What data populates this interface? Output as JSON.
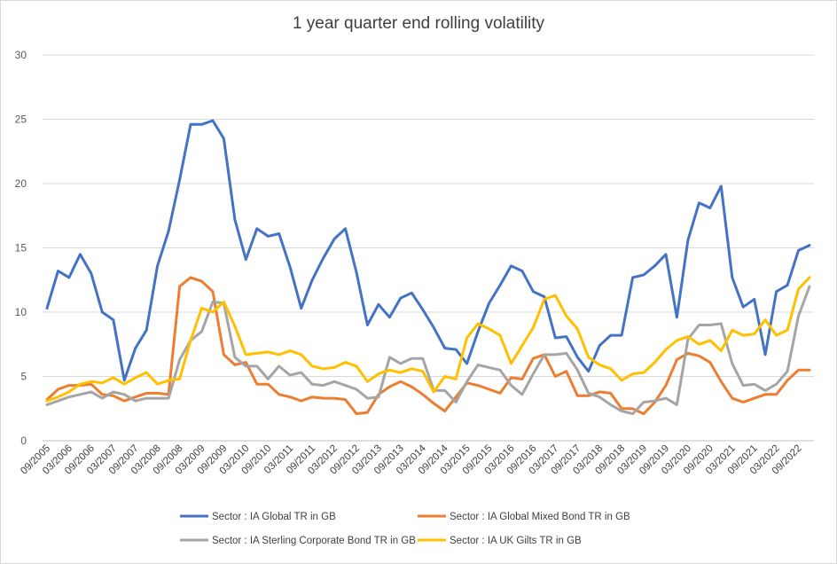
{
  "chart_data": {
    "type": "line",
    "title": "1 year quarter end rolling volatility",
    "xlabel": "",
    "ylabel": "",
    "ylim": [
      0,
      30
    ],
    "yticks": [
      0,
      5,
      10,
      15,
      20,
      25,
      30
    ],
    "grid": true,
    "legend_position": "bottom",
    "x": [
      "09/2005",
      "12/2005",
      "03/2006",
      "06/2006",
      "09/2006",
      "12/2006",
      "03/2007",
      "06/2007",
      "09/2007",
      "12/2007",
      "03/2008",
      "06/2008",
      "09/2008",
      "12/2008",
      "03/2009",
      "06/2009",
      "09/2009",
      "12/2009",
      "03/2010",
      "06/2010",
      "09/2010",
      "12/2010",
      "03/2011",
      "06/2011",
      "09/2011",
      "12/2011",
      "03/2012",
      "06/2012",
      "09/2012",
      "12/2012",
      "03/2013",
      "06/2013",
      "09/2013",
      "12/2013",
      "03/2014",
      "06/2014",
      "09/2014",
      "12/2014",
      "03/2015",
      "06/2015",
      "09/2015",
      "12/2015",
      "03/2016",
      "06/2016",
      "09/2016",
      "12/2016",
      "03/2017",
      "06/2017",
      "09/2017",
      "12/2017",
      "03/2018",
      "06/2018",
      "09/2018",
      "12/2018",
      "03/2019",
      "06/2019",
      "09/2019",
      "12/2019",
      "03/2020",
      "06/2020",
      "09/2020",
      "12/2020",
      "03/2021",
      "06/2021",
      "09/2021",
      "12/2021",
      "03/2022",
      "06/2022",
      "09/2022",
      "12/2022"
    ],
    "xtick_labels": [
      "09/2005",
      "03/2006",
      "09/2006",
      "03/2007",
      "09/2007",
      "03/2008",
      "09/2008",
      "03/2009",
      "09/2009",
      "03/2010",
      "09/2010",
      "03/2011",
      "09/2011",
      "03/2012",
      "09/2012",
      "03/2013",
      "09/2013",
      "03/2014",
      "09/2014",
      "03/2015",
      "09/2015",
      "03/2016",
      "09/2016",
      "03/2017",
      "09/2017",
      "03/2018",
      "09/2018",
      "03/2019",
      "09/2019",
      "03/2020",
      "09/2020",
      "03/2021",
      "09/2021",
      "03/2022",
      "09/2022"
    ],
    "series": [
      {
        "name": "Sector : IA Global TR in GB",
        "color": "#4472C4",
        "values": [
          10.3,
          13.2,
          12.7,
          14.5,
          13.0,
          10.0,
          9.4,
          4.7,
          7.2,
          8.6,
          13.6,
          16.3,
          20.3,
          24.6,
          24.6,
          24.9,
          23.5,
          17.2,
          14.1,
          16.5,
          15.9,
          16.1,
          13.5,
          10.3,
          12.5,
          14.2,
          15.7,
          16.5,
          13.1,
          9.0,
          10.6,
          9.6,
          11.1,
          11.5,
          10.2,
          8.8,
          7.2,
          7.1,
          6.0,
          8.5,
          10.7,
          12.1,
          13.6,
          13.2,
          11.6,
          11.2,
          8.0,
          8.1,
          6.5,
          5.4,
          7.4,
          8.2,
          8.2,
          12.7,
          12.9,
          13.6,
          14.5,
          9.6,
          15.6,
          18.5,
          18.1,
          19.8,
          12.7,
          10.4,
          11.0,
          6.7,
          11.6,
          12.1,
          14.8,
          15.2
        ]
      },
      {
        "name": "Sector : IA Global Mixed Bond TR in GB",
        "color": "#ED7D31",
        "values": [
          3.2,
          4.0,
          4.3,
          4.3,
          4.4,
          3.6,
          3.5,
          3.1,
          3.4,
          3.7,
          3.7,
          3.6,
          12.0,
          12.7,
          12.4,
          11.6,
          6.7,
          5.9,
          6.1,
          4.4,
          4.4,
          3.6,
          3.4,
          3.1,
          3.4,
          3.3,
          3.3,
          3.2,
          2.1,
          2.2,
          3.6,
          4.2,
          4.6,
          4.2,
          3.6,
          2.9,
          2.3,
          3.4,
          4.5,
          4.3,
          4.0,
          3.7,
          4.9,
          4.8,
          6.4,
          6.7,
          5.0,
          5.4,
          3.5,
          3.5,
          3.8,
          3.7,
          2.5,
          2.5,
          2.1,
          3.0,
          4.3,
          6.3,
          6.8,
          6.6,
          6.1,
          4.6,
          3.3,
          3.0,
          3.3,
          3.6,
          3.6,
          4.7,
          5.5,
          5.5
        ]
      },
      {
        "name": "Sector : IA Sterling Corporate Bond TR in GB",
        "color": "#A5A5A5",
        "values": [
          2.8,
          3.1,
          3.4,
          3.6,
          3.8,
          3.3,
          3.8,
          3.6,
          3.1,
          3.3,
          3.3,
          3.3,
          6.3,
          7.8,
          8.5,
          10.8,
          10.7,
          6.5,
          5.8,
          5.8,
          4.8,
          5.8,
          5.1,
          5.3,
          4.4,
          4.3,
          4.6,
          4.3,
          4.0,
          3.3,
          3.4,
          6.5,
          6.0,
          6.4,
          6.4,
          3.9,
          3.9,
          3.0,
          4.6,
          5.9,
          5.7,
          5.5,
          4.3,
          3.6,
          5.2,
          6.7,
          6.7,
          6.8,
          5.5,
          3.7,
          3.4,
          2.8,
          2.3,
          2.1,
          3.0,
          3.1,
          3.3,
          2.8,
          7.9,
          9.0,
          9.0,
          9.1,
          6.0,
          4.3,
          4.4,
          3.9,
          4.4,
          5.4,
          9.7,
          12.0
        ]
      },
      {
        "name": "Sector : IA UK Gilts TR in GB",
        "color": "#FFC000",
        "values": [
          3.1,
          3.4,
          3.8,
          4.4,
          4.6,
          4.5,
          4.9,
          4.4,
          4.9,
          5.3,
          4.4,
          4.7,
          4.8,
          7.8,
          10.3,
          10.0,
          10.8,
          8.9,
          6.7,
          6.8,
          6.9,
          6.7,
          7.0,
          6.7,
          5.8,
          5.6,
          5.7,
          6.1,
          5.8,
          4.6,
          5.2,
          5.5,
          5.3,
          5.6,
          5.4,
          3.8,
          5.0,
          4.8,
          8.0,
          9.1,
          8.7,
          8.2,
          6.0,
          7.4,
          8.8,
          11.0,
          11.3,
          9.7,
          8.7,
          6.5,
          5.9,
          5.6,
          4.7,
          5.2,
          5.3,
          6.1,
          7.1,
          7.8,
          8.1,
          7.5,
          7.8,
          7.0,
          8.6,
          8.2,
          8.3,
          9.4,
          8.2,
          8.6,
          11.8,
          12.7
        ]
      }
    ]
  }
}
